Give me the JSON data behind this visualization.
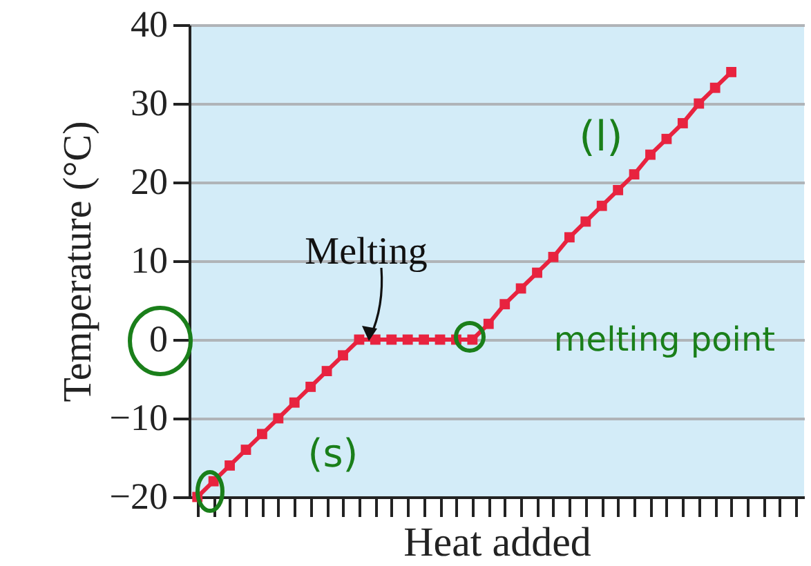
{
  "chart_data": {
    "type": "line",
    "xlabel": "Heat added",
    "ylabel": "Temperature (°C)",
    "categories": [
      null,
      null,
      null,
      null,
      null,
      null,
      null,
      null,
      null,
      null,
      null,
      null,
      null,
      null,
      null,
      null,
      null,
      null,
      null,
      null,
      null,
      null,
      null,
      null,
      null,
      null,
      null,
      null,
      null,
      null,
      null,
      null,
      null,
      null,
      null,
      null,
      null,
      null
    ],
    "series": [
      {
        "color": "#e8233f",
        "values": [
          -20,
          -18,
          -16,
          -14,
          -12,
          -10,
          -8,
          -6,
          -4,
          -2,
          0,
          0,
          0,
          0,
          0,
          0,
          0,
          0,
          2,
          4.5,
          6.5,
          8.5,
          10.5,
          13,
          15,
          17,
          19,
          21,
          23.5,
          25.5,
          27.5,
          30,
          32,
          34,
          null,
          null,
          null,
          null
        ]
      }
    ],
    "ylim": [
      -20,
      40
    ],
    "yticks": [
      -20,
      -10,
      0,
      10,
      20,
      30,
      40
    ],
    "grid": "y",
    "marker": "square",
    "line_style": "solid",
    "annotations": [
      "Melting",
      "(l)",
      "(s)",
      "melting point"
    ]
  }
}
